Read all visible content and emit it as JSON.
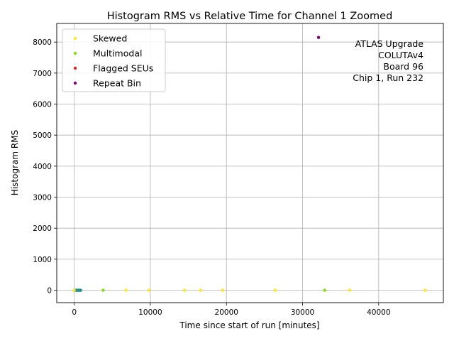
{
  "chart_data": {
    "type": "scatter",
    "title": "Histogram RMS vs Relative Time for Channel 1 Zoomed",
    "xlabel": "Time since start of run [minutes]",
    "ylabel": "Histogram RMS",
    "xlim": [
      -2300,
      48500
    ],
    "ylim": [
      -400,
      8600
    ],
    "xticks": [
      0,
      10000,
      20000,
      30000,
      40000
    ],
    "yticks": [
      0,
      1000,
      2000,
      3000,
      4000,
      5000,
      6000,
      7000,
      8000
    ],
    "grid": true,
    "legend_position": "top-left",
    "annotation_position": "top-right",
    "annotation": [
      "ATLAS Upgrade",
      "COLUTAv4",
      "Board 96",
      "Chip 1, Run 232"
    ],
    "normal_points": {
      "color": "#21918c",
      "x": [
        0,
        60,
        120,
        200,
        280,
        360,
        440,
        520,
        600,
        680,
        760,
        840
      ],
      "y": [
        0,
        0,
        0,
        0,
        0,
        0,
        0,
        0,
        0,
        0,
        0,
        0
      ]
    },
    "series": [
      {
        "name": "Skewed",
        "color": "#fde725",
        "x": [
          0,
          6800,
          9800,
          14500,
          16600,
          19500,
          26400,
          36200,
          46100
        ],
        "y": [
          0,
          0,
          0,
          0,
          0,
          0,
          0,
          0,
          0
        ]
      },
      {
        "name": "Multimodal",
        "color": "#84e10f",
        "x": [
          3800,
          32900
        ],
        "y": [
          0,
          0
        ]
      },
      {
        "name": "Flagged SEUs",
        "color": "#d62728",
        "x": [],
        "y": []
      },
      {
        "name": "Repeat Bin",
        "color": "#7a0177",
        "x": [
          32100
        ],
        "y": [
          8150
        ]
      }
    ]
  }
}
